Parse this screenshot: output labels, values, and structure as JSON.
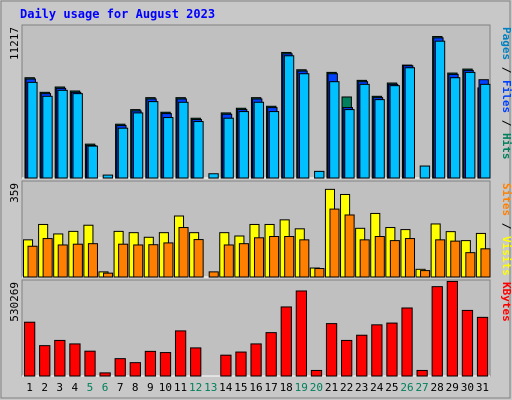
{
  "chart_data": [
    {
      "type": "bar",
      "title": "Daily usage for August 2023",
      "ymax_label": "11217",
      "ylabel_parts": [
        {
          "text": "Pages",
          "color": "#0080c0"
        },
        {
          "text": " / ",
          "color": "#000000"
        },
        {
          "text": "Files",
          "color": "#0040ff"
        },
        {
          "text": " / ",
          "color": "#000000"
        },
        {
          "text": "Hits",
          "color": "#00805c"
        }
      ],
      "series": [
        {
          "name": "Hits",
          "color": "#00805c",
          "values": [
            7550,
            6450,
            6850,
            6550,
            2550,
            0,
            4050,
            5150,
            6050,
            4950,
            6050,
            4500,
            0,
            4900,
            5250,
            6050,
            5400,
            9450,
            8150,
            0,
            7950,
            6100,
            7350,
            6150,
            7150,
            8500,
            0,
            10650,
            7900,
            8200,
            6780
          ]
        },
        {
          "name": "Files",
          "color": "#0040ff",
          "values": [
            7450,
            6350,
            6750,
            6450,
            2450,
            0,
            3950,
            5050,
            5950,
            4850,
            5950,
            4400,
            0,
            4800,
            5150,
            5950,
            5300,
            9350,
            8050,
            0,
            7850,
            5300,
            7250,
            6050,
            7050,
            8450,
            0,
            10550,
            7800,
            8100,
            7400
          ]
        },
        {
          "name": "Pages",
          "color": "#00c0ff",
          "values": [
            7200,
            6150,
            6600,
            6350,
            2400,
            220,
            3750,
            4900,
            5750,
            4550,
            5700,
            4250,
            320,
            4500,
            5000,
            5700,
            5000,
            9200,
            7850,
            500,
            7250,
            5150,
            7050,
            5900,
            6950,
            8300,
            900,
            10300,
            7550,
            7950,
            7050
          ]
        }
      ],
      "ylim": [
        0,
        11217
      ]
    },
    {
      "type": "bar",
      "ymax_label": "359",
      "ylabel_parts": [
        {
          "text": "Sites",
          "color": "#ff8000"
        },
        {
          "text": " / ",
          "color": "#000000"
        },
        {
          "text": "Visits",
          "color": "#ffff00"
        }
      ],
      "series": [
        {
          "name": "Visits",
          "color": "#ffff00",
          "values": [
            145,
            205,
            168,
            178,
            202,
            20,
            178,
            173,
            155,
            173,
            238,
            173,
            0,
            173,
            160,
            205,
            205,
            223,
            188,
            35,
            342,
            322,
            190,
            248,
            193,
            185,
            30,
            207,
            177,
            142,
            170
          ]
        },
        {
          "name": "Sites",
          "color": "#ff8000",
          "values": [
            120,
            150,
            125,
            128,
            130,
            15,
            128,
            125,
            126,
            133,
            193,
            146,
            20,
            125,
            130,
            153,
            158,
            158,
            145,
            33,
            265,
            242,
            145,
            158,
            142,
            150,
            25,
            145,
            140,
            95,
            110
          ]
        }
      ],
      "ylim": [
        0,
        359
      ]
    },
    {
      "type": "bar",
      "ymax_label": "530269",
      "ylabel_parts": [
        {
          "text": "KBytes",
          "color": "#ff0000"
        }
      ],
      "series": [
        {
          "name": "KBytes",
          "color": "#ff0000",
          "values": [
            310000,
            175000,
            205000,
            185000,
            143000,
            18000,
            100000,
            77000,
            142000,
            135000,
            260000,
            162000,
            0,
            120000,
            138000,
            185000,
            250000,
            398000,
            490000,
            32000,
            302000,
            205000,
            235000,
            295000,
            305000,
            392000,
            32000,
            515000,
            545000,
            378000,
            338000
          ]
        }
      ],
      "ylim": [
        0,
        530269
      ]
    }
  ],
  "days": [
    "1",
    "2",
    "3",
    "4",
    "5",
    "6",
    "7",
    "8",
    "9",
    "10",
    "11",
    "12",
    "13",
    "14",
    "15",
    "16",
    "17",
    "18",
    "19",
    "20",
    "21",
    "22",
    "23",
    "24",
    "25",
    "26",
    "27",
    "28",
    "29",
    "30",
    "31"
  ],
  "weekend_days": [
    5,
    6,
    12,
    13,
    19,
    20,
    26,
    27
  ],
  "colors": {
    "weekday": "#000000",
    "weekend": "#00805c",
    "title": "#0000ff",
    "panel_bg": "#c0c0c0",
    "frame_bg": "#c8c8c8"
  }
}
